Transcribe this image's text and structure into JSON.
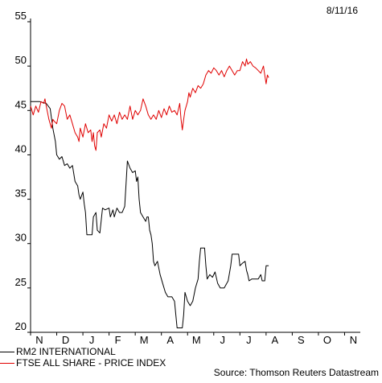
{
  "date_label": "8/11/16",
  "source": "Source: Thomson Reuters Datastream",
  "chart_data": {
    "type": "line",
    "title": "",
    "xlabel": "",
    "ylabel": "",
    "ylim": [
      20,
      55
    ],
    "yticks": [
      20,
      25,
      30,
      35,
      40,
      45,
      50,
      55
    ],
    "x_tick_labels": [
      "N",
      "D",
      "J",
      "F",
      "M",
      "A",
      "M",
      "J",
      "J",
      "A",
      "S",
      "O",
      "N"
    ],
    "grid": false,
    "legend_position": "bottom-left",
    "series": [
      {
        "name": "RM2 INTERNATIONAL",
        "color": "#000000",
        "points": [
          [
            0.0,
            46.0
          ],
          [
            0.35,
            46.0
          ],
          [
            0.6,
            45.8
          ],
          [
            0.75,
            45.2
          ],
          [
            0.85,
            43.0
          ],
          [
            0.95,
            41.5
          ],
          [
            1.0,
            40.0
          ],
          [
            1.1,
            39.5
          ],
          [
            1.2,
            39.8
          ],
          [
            1.3,
            38.8
          ],
          [
            1.4,
            39.0
          ],
          [
            1.5,
            38.5
          ],
          [
            1.6,
            38.8
          ],
          [
            1.7,
            37.0
          ],
          [
            1.8,
            36.5
          ],
          [
            1.85,
            35.5
          ],
          [
            1.9,
            35.0
          ],
          [
            2.0,
            35.8
          ],
          [
            2.05,
            34.5
          ],
          [
            2.1,
            33.5
          ],
          [
            2.15,
            31.0
          ],
          [
            2.35,
            31.0
          ],
          [
            2.4,
            33.0
          ],
          [
            2.5,
            33.5
          ],
          [
            2.55,
            31.5
          ],
          [
            2.65,
            31.2
          ],
          [
            2.75,
            34.0
          ],
          [
            2.85,
            33.8
          ],
          [
            3.0,
            34.0
          ],
          [
            3.05,
            33.0
          ],
          [
            3.15,
            33.8
          ],
          [
            3.2,
            33.0
          ],
          [
            3.3,
            34.0
          ],
          [
            3.4,
            33.5
          ],
          [
            3.5,
            33.5
          ],
          [
            3.6,
            34.2
          ],
          [
            3.7,
            39.3
          ],
          [
            3.8,
            38.5
          ],
          [
            3.9,
            38.0
          ],
          [
            4.0,
            38.2
          ],
          [
            4.05,
            37.0
          ],
          [
            4.1,
            37.5
          ],
          [
            4.15,
            35.0
          ],
          [
            4.2,
            33.5
          ],
          [
            4.3,
            33.0
          ],
          [
            4.4,
            32.5
          ],
          [
            4.45,
            33.0
          ],
          [
            4.5,
            33.0
          ],
          [
            4.55,
            31.5
          ],
          [
            4.6,
            31.0
          ],
          [
            4.65,
            30.0
          ],
          [
            4.7,
            28.0
          ],
          [
            4.75,
            27.5
          ],
          [
            4.85,
            28.0
          ],
          [
            4.95,
            26.5
          ],
          [
            5.05,
            25.5
          ],
          [
            5.15,
            24.5
          ],
          [
            5.25,
            24.0
          ],
          [
            5.4,
            24.0
          ],
          [
            5.5,
            23.5
          ],
          [
            5.55,
            22.0
          ],
          [
            5.6,
            20.5
          ],
          [
            5.8,
            20.5
          ],
          [
            5.85,
            22.0
          ],
          [
            5.9,
            24.5
          ],
          [
            6.0,
            23.5
          ],
          [
            6.1,
            23.0
          ],
          [
            6.2,
            23.5
          ],
          [
            6.3,
            25.0
          ],
          [
            6.4,
            26.0
          ],
          [
            6.45,
            28.0
          ],
          [
            6.5,
            29.5
          ],
          [
            6.65,
            29.5
          ],
          [
            6.7,
            27.5
          ],
          [
            6.75,
            26.0
          ],
          [
            6.85,
            26.5
          ],
          [
            6.95,
            26.2
          ],
          [
            7.05,
            26.8
          ],
          [
            7.15,
            25.5
          ],
          [
            7.25,
            25.0
          ],
          [
            7.4,
            25.0
          ],
          [
            7.55,
            25.8
          ],
          [
            7.65,
            27.5
          ],
          [
            7.7,
            28.8
          ],
          [
            7.95,
            28.8
          ],
          [
            8.0,
            27.5
          ],
          [
            8.1,
            27.8
          ],
          [
            8.2,
            28.0
          ],
          [
            8.25,
            27.0
          ],
          [
            8.3,
            26.5
          ],
          [
            8.35,
            25.8
          ],
          [
            8.45,
            26.0
          ],
          [
            8.55,
            26.0
          ],
          [
            8.7,
            26.0
          ],
          [
            8.8,
            26.5
          ],
          [
            8.85,
            25.8
          ],
          [
            8.95,
            25.8
          ],
          [
            9.0,
            27.5
          ],
          [
            9.1,
            27.5
          ]
        ]
      },
      {
        "name": "FTSE ALL SHARE - PRICE INDEX",
        "color": "#e00000",
        "points": [
          [
            0.0,
            45.5
          ],
          [
            0.1,
            44.5
          ],
          [
            0.2,
            45.5
          ],
          [
            0.3,
            44.8
          ],
          [
            0.4,
            46.0
          ],
          [
            0.5,
            45.8
          ],
          [
            0.55,
            46.3
          ],
          [
            0.6,
            45.5
          ],
          [
            0.7,
            44.0
          ],
          [
            0.8,
            43.0
          ],
          [
            0.85,
            44.0
          ],
          [
            0.9,
            43.8
          ],
          [
            1.0,
            43.5
          ],
          [
            1.1,
            45.0
          ],
          [
            1.2,
            45.8
          ],
          [
            1.3,
            45.5
          ],
          [
            1.4,
            44.0
          ],
          [
            1.5,
            44.5
          ],
          [
            1.6,
            43.5
          ],
          [
            1.7,
            42.5
          ],
          [
            1.8,
            42.0
          ],
          [
            1.85,
            41.5
          ],
          [
            1.9,
            43.0
          ],
          [
            2.0,
            42.0
          ],
          [
            2.1,
            43.5
          ],
          [
            2.2,
            42.5
          ],
          [
            2.3,
            42.8
          ],
          [
            2.35,
            41.5
          ],
          [
            2.4,
            42.5
          ],
          [
            2.45,
            41.0
          ],
          [
            2.5,
            40.5
          ],
          [
            2.55,
            42.5
          ],
          [
            2.65,
            42.8
          ],
          [
            2.7,
            42.0
          ],
          [
            2.8,
            43.5
          ],
          [
            2.9,
            43.0
          ],
          [
            3.0,
            44.5
          ],
          [
            3.1,
            43.8
          ],
          [
            3.2,
            44.5
          ],
          [
            3.3,
            43.5
          ],
          [
            3.4,
            44.8
          ],
          [
            3.5,
            44.0
          ],
          [
            3.6,
            44.5
          ],
          [
            3.7,
            44.0
          ],
          [
            3.8,
            45.5
          ],
          [
            3.9,
            44.0
          ],
          [
            4.0,
            45.0
          ],
          [
            4.1,
            44.5
          ],
          [
            4.2,
            45.0
          ],
          [
            4.3,
            46.3
          ],
          [
            4.4,
            45.5
          ],
          [
            4.5,
            44.5
          ],
          [
            4.6,
            44.0
          ],
          [
            4.7,
            44.5
          ],
          [
            4.8,
            44.0
          ],
          [
            4.9,
            45.0
          ],
          [
            5.0,
            44.2
          ],
          [
            5.1,
            45.2
          ],
          [
            5.2,
            44.5
          ],
          [
            5.3,
            45.5
          ],
          [
            5.4,
            44.8
          ],
          [
            5.5,
            45.0
          ],
          [
            5.6,
            44.5
          ],
          [
            5.7,
            45.8
          ],
          [
            5.75,
            44.0
          ],
          [
            5.8,
            42.8
          ],
          [
            5.85,
            44.0
          ],
          [
            5.9,
            45.0
          ],
          [
            6.0,
            46.0
          ],
          [
            6.05,
            47.0
          ],
          [
            6.1,
            46.5
          ],
          [
            6.2,
            47.5
          ],
          [
            6.3,
            47.0
          ],
          [
            6.4,
            47.8
          ],
          [
            6.5,
            47.5
          ],
          [
            6.6,
            48.0
          ],
          [
            6.7,
            49.0
          ],
          [
            6.8,
            49.5
          ],
          [
            6.9,
            49.2
          ],
          [
            7.0,
            49.8
          ],
          [
            7.1,
            49.5
          ],
          [
            7.2,
            49.0
          ],
          [
            7.3,
            49.5
          ],
          [
            7.4,
            48.8
          ],
          [
            7.5,
            49.5
          ],
          [
            7.6,
            50.0
          ],
          [
            7.7,
            49.5
          ],
          [
            7.8,
            49.0
          ],
          [
            7.9,
            49.5
          ],
          [
            8.0,
            49.5
          ],
          [
            8.1,
            50.5
          ],
          [
            8.2,
            50.0
          ],
          [
            8.25,
            50.8
          ],
          [
            8.3,
            50.2
          ],
          [
            8.4,
            50.5
          ],
          [
            8.5,
            50.0
          ],
          [
            8.6,
            49.8
          ],
          [
            8.7,
            49.5
          ],
          [
            8.8,
            49.2
          ],
          [
            8.9,
            50.0
          ],
          [
            8.95,
            49.0
          ],
          [
            9.0,
            48.0
          ],
          [
            9.05,
            49.0
          ],
          [
            9.1,
            48.7
          ]
        ]
      }
    ]
  }
}
